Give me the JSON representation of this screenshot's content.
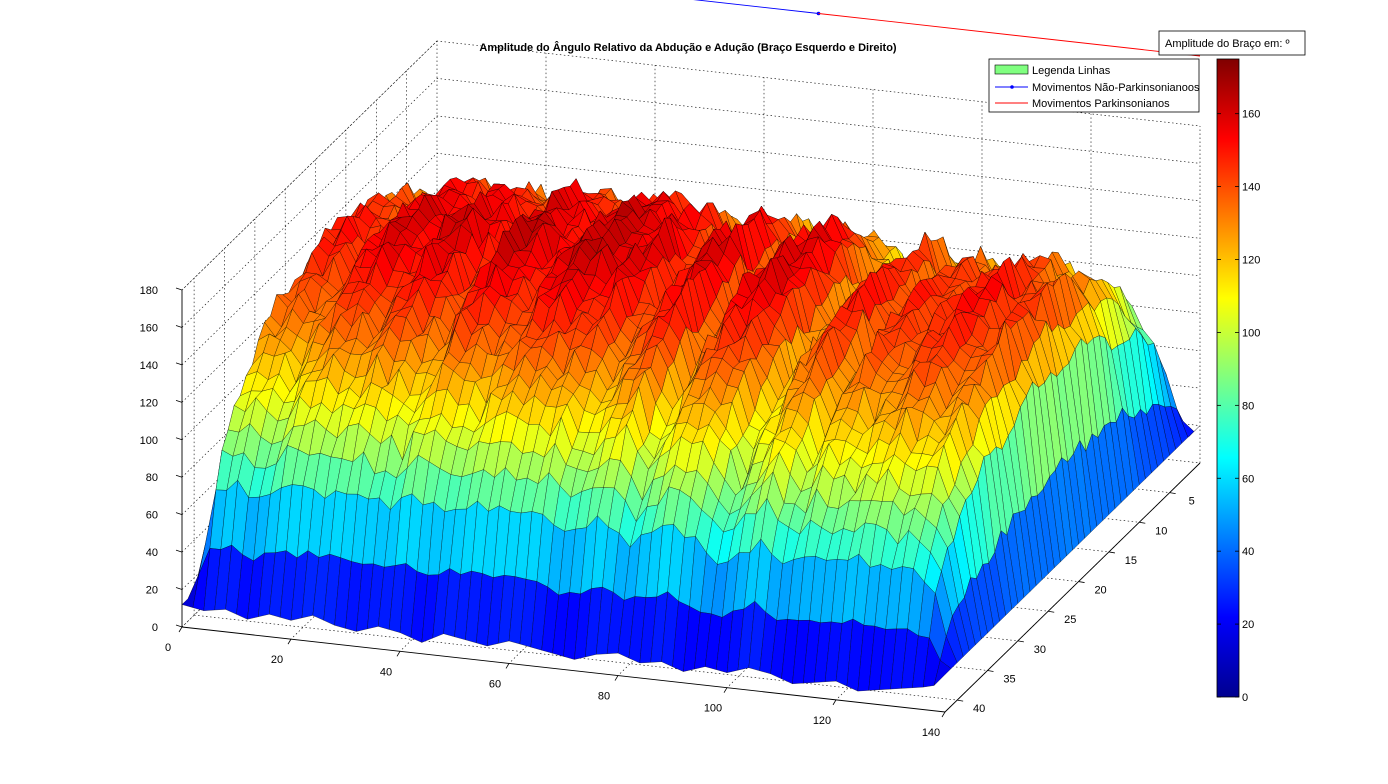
{
  "chart_data": {
    "type": "surface",
    "title": "Amplitude do Ângulo Relativo da Abdução e Adução (Braço Esquerdo e Direito)",
    "xlabel": "",
    "ylabel": "",
    "zlabel": "",
    "x_ticks": [
      "0",
      "20",
      "40",
      "60",
      "80",
      "100",
      "120",
      "140"
    ],
    "y_ticks": [
      "5",
      "10",
      "15",
      "20",
      "25",
      "30",
      "35",
      "40"
    ],
    "z_ticks": [
      "0",
      "20",
      "40",
      "60",
      "80",
      "100",
      "120",
      "140",
      "160",
      "180"
    ],
    "xlim": [
      0,
      140
    ],
    "ylim": [
      0,
      42
    ],
    "zlim": [
      0,
      180
    ],
    "grid": true,
    "colormap": "jet",
    "colorbar": {
      "label": "Amplitude do Braço em: º",
      "ticks": [
        "0",
        "20",
        "40",
        "60",
        "80",
        "100",
        "120",
        "140",
        "160"
      ],
      "range": [
        0,
        175
      ]
    },
    "legend": {
      "placement": "top-right",
      "items": [
        {
          "label": "Legenda Linhas",
          "marker": "patch",
          "color": "#80ff80"
        },
        {
          "label": "Movimentos Não-Parkinsonianoos",
          "marker": "line-dot",
          "color": "#0000ff"
        },
        {
          "label": "Movimentos Parkinsonianos",
          "marker": "line",
          "color": "#ff0000"
        }
      ]
    },
    "lines": [
      {
        "name": "Movimentos Não-Parkinsonianoos",
        "color": "#0000ff",
        "x": [
          0,
          70
        ],
        "y": [
          0,
          0
        ],
        "z": [
          180,
          180
        ]
      },
      {
        "name": "Movimentos Parkinsonianos",
        "color": "#ff0000",
        "x": [
          70,
          140
        ],
        "y": [
          0,
          0
        ],
        "z": [
          180,
          180
        ]
      }
    ],
    "surface_profile": {
      "x": [
        0,
        4,
        8,
        12,
        16,
        20,
        24,
        28,
        32,
        36,
        40,
        44,
        48,
        52,
        56,
        60,
        64,
        68,
        72,
        76,
        80,
        84,
        88,
        92,
        96,
        100,
        104,
        108,
        112,
        116,
        120,
        124,
        128,
        132,
        136,
        140
      ],
      "peak_z": [
        15,
        155,
        160,
        150,
        165,
        170,
        160,
        172,
        165,
        155,
        175,
        168,
        160,
        172,
        175,
        165,
        170,
        150,
        165,
        172,
        140,
        165,
        170,
        160,
        130,
        150,
        165,
        140,
        160,
        150,
        155,
        165,
        150,
        155,
        120,
        20
      ],
      "floor_z": [
        12,
        10,
        12,
        8,
        12,
        10,
        14,
        10,
        8,
        12,
        10,
        6,
        12,
        10,
        8,
        12,
        10,
        8,
        6,
        10,
        12,
        8,
        10,
        6,
        10,
        8,
        12,
        10,
        6,
        8,
        10,
        6,
        8,
        10,
        12,
        15
      ]
    }
  }
}
